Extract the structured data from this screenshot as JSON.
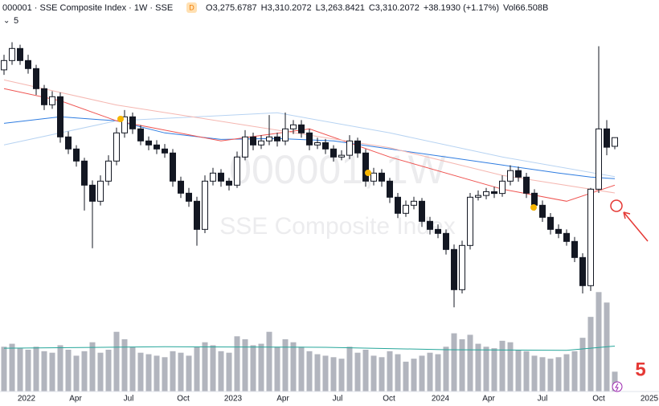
{
  "header": {
    "symbol": "000001 · SSE Composite Index · 1W · SSE",
    "badge": "D",
    "open_label": "O",
    "open": "3,275.6787",
    "high_label": "H",
    "high": "3,310.2072",
    "low_label": "L",
    "low": "3,263.8421",
    "close_label": "C",
    "close": "3,310.2072",
    "change": "+38.1930 (+1.17%)",
    "volume_label": "Vol",
    "volume": "66.508B",
    "indicator_count": "5"
  },
  "watermark": {
    "line1": "000001, 1W",
    "line2": "SSE Composite Index"
  },
  "annotation": "5",
  "chart_data": {
    "type": "candlestick",
    "xlim": [
      -0.5,
      81.5
    ],
    "ylim": [
      2610,
      3730
    ],
    "volume_ylim": [
      0,
      350
    ],
    "up_color": "#ffffff",
    "down_color": "#131722",
    "volume_color": "#b2b5be",
    "xticks": [
      {
        "value": 2.8,
        "label": "2022"
      },
      {
        "value": 8.9,
        "label": "Apr"
      },
      {
        "value": 15.5,
        "label": "Jul"
      },
      {
        "value": 22.3,
        "label": "Oct"
      },
      {
        "value": 28.5,
        "label": "2023"
      },
      {
        "value": 34.7,
        "label": "Apr"
      },
      {
        "value": 41.5,
        "label": "Jul"
      },
      {
        "value": 47.9,
        "label": "Oct"
      },
      {
        "value": 54.3,
        "label": "2024"
      },
      {
        "value": 60.3,
        "label": "Apr"
      },
      {
        "value": 67,
        "label": "Jul"
      },
      {
        "value": 74,
        "label": "Oct"
      },
      {
        "value": 80.3,
        "label": "2025"
      }
    ],
    "candles": [
      [
        3580,
        3640,
        3560,
        3617
      ],
      [
        3617,
        3690,
        3600,
        3665
      ],
      [
        3665,
        3680,
        3600,
        3617
      ],
      [
        3617,
        3640,
        3565,
        3585
      ],
      [
        3585,
        3600,
        3480,
        3505
      ],
      [
        3505,
        3520,
        3420,
        3441
      ],
      [
        3441,
        3495,
        3425,
        3473
      ],
      [
        3473,
        3490,
        3290,
        3313
      ],
      [
        3313,
        3335,
        3245,
        3265
      ],
      [
        3265,
        3280,
        3195,
        3217
      ],
      [
        3217,
        3230,
        3020,
        3121
      ],
      [
        3121,
        3140,
        2870,
        3057
      ],
      [
        3057,
        3160,
        3040,
        3137
      ],
      [
        3137,
        3240,
        3120,
        3217
      ],
      [
        3217,
        3350,
        3200,
        3329
      ],
      [
        3329,
        3420,
        3310,
        3393
      ],
      [
        3393,
        3410,
        3325,
        3345
      ],
      [
        3345,
        3360,
        3280,
        3297
      ],
      [
        3297,
        3315,
        3260,
        3281
      ],
      [
        3281,
        3300,
        3245,
        3265
      ],
      [
        3265,
        3285,
        3230,
        3249
      ],
      [
        3249,
        3265,
        3115,
        3137
      ],
      [
        3137,
        3155,
        3070,
        3089
      ],
      [
        3089,
        3110,
        3035,
        3057
      ],
      [
        3057,
        3075,
        2880,
        2945
      ],
      [
        2945,
        3160,
        2930,
        3137
      ],
      [
        3137,
        3190,
        3120,
        3169
      ],
      [
        3169,
        3185,
        3115,
        3137
      ],
      [
        3137,
        3150,
        3100,
        3121
      ],
      [
        3121,
        3255,
        3110,
        3233
      ],
      [
        3233,
        3340,
        3220,
        3313
      ],
      [
        3313,
        3330,
        3260,
        3281
      ],
      [
        3281,
        3320,
        3265,
        3297
      ],
      [
        3297,
        3400,
        3280,
        3313
      ],
      [
        3313,
        3330,
        3275,
        3297
      ],
      [
        3297,
        3410,
        3280,
        3345
      ],
      [
        3345,
        3380,
        3325,
        3361
      ],
      [
        3361,
        3380,
        3310,
        3329
      ],
      [
        3329,
        3345,
        3260,
        3281
      ],
      [
        3281,
        3310,
        3265,
        3290
      ],
      [
        3290,
        3305,
        3245,
        3265
      ],
      [
        3265,
        3280,
        3215,
        3233
      ],
      [
        3233,
        3260,
        3220,
        3240
      ],
      [
        3240,
        3320,
        3225,
        3297
      ],
      [
        3297,
        3310,
        3230,
        3249
      ],
      [
        3249,
        3265,
        3115,
        3137
      ],
      [
        3137,
        3190,
        3120,
        3169
      ],
      [
        3169,
        3185,
        3115,
        3137
      ],
      [
        3137,
        3150,
        3050,
        3073
      ],
      [
        3073,
        3090,
        2990,
        3009
      ],
      [
        3009,
        3060,
        2995,
        3041
      ],
      [
        3041,
        3075,
        3025,
        3057
      ],
      [
        3057,
        3070,
        2955,
        2977
      ],
      [
        2977,
        2995,
        2925,
        2945
      ],
      [
        2945,
        2965,
        2910,
        2929
      ],
      [
        2929,
        2945,
        2845,
        2865
      ],
      [
        2865,
        2885,
        2635,
        2705
      ],
      [
        2705,
        2900,
        2690,
        2881
      ],
      [
        2881,
        3090,
        2865,
        3073
      ],
      [
        3073,
        3100,
        3060,
        3080
      ],
      [
        3080,
        3110,
        3065,
        3095
      ],
      [
        3095,
        3115,
        3070,
        3088
      ],
      [
        3088,
        3160,
        3075,
        3137
      ],
      [
        3137,
        3200,
        3120,
        3179
      ],
      [
        3179,
        3195,
        3135,
        3153
      ],
      [
        3153,
        3170,
        3070,
        3089
      ],
      [
        3089,
        3105,
        3020,
        3041
      ],
      [
        3041,
        3060,
        2975,
        2993
      ],
      [
        2993,
        3010,
        2925,
        2945
      ],
      [
        2945,
        2965,
        2910,
        2929
      ],
      [
        2929,
        2945,
        2880,
        2897
      ],
      [
        2897,
        2915,
        2815,
        2833
      ],
      [
        2833,
        2850,
        2690,
        2721
      ],
      [
        2721,
        3110,
        2700,
        3105
      ],
      [
        3105,
        3674,
        3090,
        3345
      ],
      [
        3345,
        3380,
        3240,
        3272.0142
      ],
      [
        3275.6787,
        3310.2072,
        3263.8421,
        3310.2072
      ]
    ],
    "volumes": [
      150,
      160,
      145,
      140,
      150,
      135,
      130,
      155,
      140,
      120,
      135,
      165,
      130,
      140,
      200,
      175,
      150,
      130,
      125,
      120,
      115,
      135,
      130,
      120,
      150,
      165,
      155,
      135,
      130,
      185,
      175,
      155,
      160,
      200,
      150,
      175,
      165,
      150,
      135,
      125,
      120,
      115,
      110,
      150,
      130,
      140,
      120,
      115,
      135,
      125,
      100,
      110,
      120,
      130,
      125,
      150,
      195,
      175,
      190,
      160,
      150,
      145,
      170,
      165,
      140,
      135,
      120,
      115,
      110,
      115,
      125,
      135,
      180,
      250,
      333,
      298,
      66.508
    ],
    "ma_lines": [
      {
        "color": "#2f7de1",
        "x": [
          0,
          7,
          14,
          20,
          27,
          34,
          41,
          48,
          55,
          62,
          69,
          73,
          76
        ],
        "values": [
          3367,
          3393,
          3377,
          3329,
          3303,
          3307,
          3297,
          3265,
          3233,
          3201,
          3169,
          3153,
          3147
        ]
      },
      {
        "color": "#b7d3f2",
        "x": [
          0,
          14,
          34,
          48,
          62,
          76
        ],
        "values": [
          3281,
          3377,
          3409,
          3329,
          3233,
          3155
        ]
      },
      {
        "color": "#ef5350",
        "x": [
          0,
          7,
          14,
          27,
          38,
          48,
          62,
          70,
          76
        ],
        "values": [
          3505,
          3457,
          3377,
          3297,
          3345,
          3233,
          3105,
          3057,
          3121
        ]
      },
      {
        "color": "#f5b7b1",
        "x": [
          0,
          14,
          30,
          48,
          62,
          76
        ],
        "values": [
          3540,
          3440,
          3360,
          3270,
          3160,
          3090
        ]
      }
    ],
    "volume_ma": {
      "color": "#26a69a",
      "x": [
        0,
        20,
        40,
        55,
        70,
        76
      ],
      "values": [
        145,
        150,
        148,
        140,
        138,
        152
      ]
    }
  }
}
